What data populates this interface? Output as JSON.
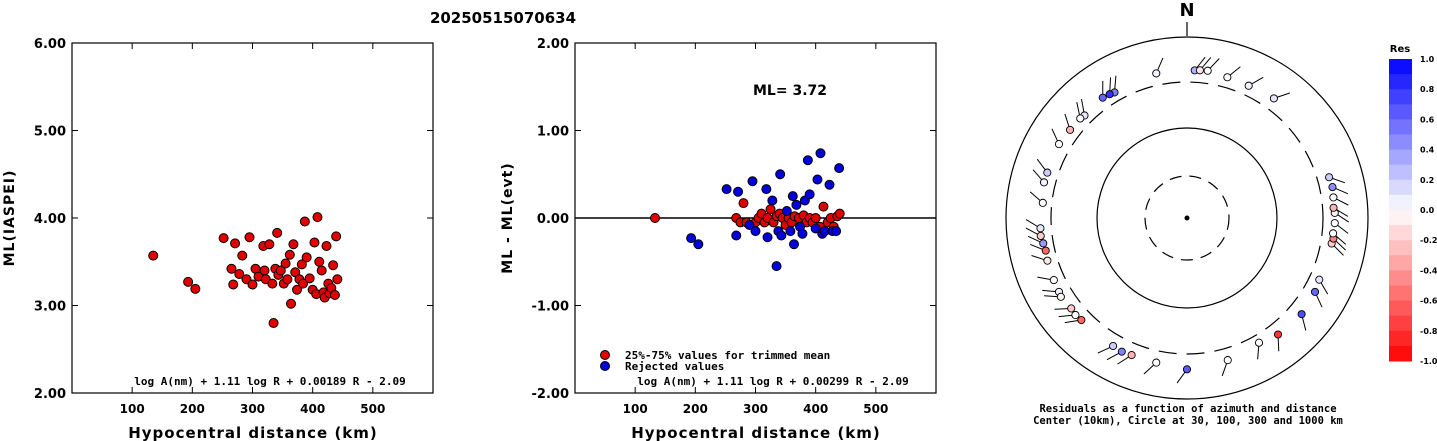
{
  "title": "20250515070634",
  "colors": {
    "point_used": "#e00000",
    "point_rejected": "#0000dd",
    "scale_pos": "#0000ff",
    "scale_neg": "#ff0000"
  },
  "chart_data": [
    {
      "type": "scatter",
      "xlabel": "Hypocentral distance (km)",
      "ylabel": "ML(IASPEI)",
      "xlim": [
        0,
        600
      ],
      "ylim": [
        2.0,
        6.0
      ],
      "xticks": [
        "100",
        "200",
        "300",
        "400",
        "500"
      ],
      "xtick_values": [
        100,
        200,
        300,
        400,
        500
      ],
      "yticks": [
        "2.00",
        "3.00",
        "4.00",
        "5.00",
        "6.00"
      ],
      "ytick_values": [
        2,
        3,
        4,
        5,
        6
      ],
      "formula": "log A(nm) + 1.11 log R + 0.00189 R - 2.09",
      "series": [
        {
          "color": "#e00000",
          "points": [
            [
              135,
              3.57
            ],
            [
              193,
              3.27
            ],
            [
              205,
              3.19
            ],
            [
              252,
              3.77
            ],
            [
              265,
              3.42
            ],
            [
              268,
              3.24
            ],
            [
              271,
              3.71
            ],
            [
              278,
              3.36
            ],
            [
              283,
              3.57
            ],
            [
              290,
              3.3
            ],
            [
              295,
              3.78
            ],
            [
              300,
              3.24
            ],
            [
              305,
              3.42
            ],
            [
              310,
              3.33
            ],
            [
              318,
              3.68
            ],
            [
              320,
              3.4
            ],
            [
              322,
              3.3
            ],
            [
              328,
              3.7
            ],
            [
              333,
              3.25
            ],
            [
              335,
              2.8
            ],
            [
              338,
              3.42
            ],
            [
              341,
              3.83
            ],
            [
              343,
              3.35
            ],
            [
              347,
              3.4
            ],
            [
              352,
              3.25
            ],
            [
              355,
              3.48
            ],
            [
              358,
              3.3
            ],
            [
              362,
              3.58
            ],
            [
              364,
              3.02
            ],
            [
              368,
              3.7
            ],
            [
              371,
              3.38
            ],
            [
              374,
              3.18
            ],
            [
              378,
              3.3
            ],
            [
              382,
              3.47
            ],
            [
              384,
              3.25
            ],
            [
              387,
              3.96
            ],
            [
              390,
              3.55
            ],
            [
              395,
              3.31
            ],
            [
              400,
              3.18
            ],
            [
              403,
              3.72
            ],
            [
              406,
              3.13
            ],
            [
              408,
              4.01
            ],
            [
              411,
              3.5
            ],
            [
              415,
              3.4
            ],
            [
              418,
              3.15
            ],
            [
              420,
              3.09
            ],
            [
              423,
              3.68
            ],
            [
              426,
              3.25
            ],
            [
              428,
              3.14
            ],
            [
              431,
              3.2
            ],
            [
              434,
              3.46
            ],
            [
              437,
              3.12
            ],
            [
              439,
              3.79
            ],
            [
              441,
              3.3
            ]
          ]
        }
      ]
    },
    {
      "type": "scatter",
      "xlabel": "Hypocentral distance (km)",
      "ylabel": "ML - ML(evt)",
      "xlim": [
        0,
        600
      ],
      "ylim": [
        -2.0,
        2.0
      ],
      "xticks": [
        "100",
        "200",
        "300",
        "400",
        "500"
      ],
      "xtick_values": [
        100,
        200,
        300,
        400,
        500
      ],
      "yticks": [
        "-2.00",
        "-1.00",
        "0.00",
        "1.00",
        "2.00"
      ],
      "ytick_values": [
        -2,
        -1,
        0,
        1,
        2
      ],
      "annotation": "ML= 3.72",
      "zero_line": 0,
      "formula": "log A(nm) + 1.11 log R + 0.00299 R - 2.09",
      "legend": [
        {
          "label": "25%-75% values for trimmed mean",
          "color": "#e00000"
        },
        {
          "label": "Rejected values",
          "color": "#0000dd"
        }
      ],
      "series": [
        {
          "name": "25%-75% values for trimmed mean",
          "color": "#e00000",
          "points": [
            [
              133,
              0.0
            ],
            [
              268,
              0.0
            ],
            [
              275,
              -0.05
            ],
            [
              280,
              0.17
            ],
            [
              285,
              -0.05
            ],
            [
              300,
              -0.05
            ],
            [
              305,
              0.0
            ],
            [
              310,
              0.05
            ],
            [
              315,
              -0.05
            ],
            [
              320,
              0.0
            ],
            [
              325,
              0.1
            ],
            [
              330,
              -0.05
            ],
            [
              335,
              0.02
            ],
            [
              340,
              0.05
            ],
            [
              345,
              0.0
            ],
            [
              350,
              -0.08
            ],
            [
              355,
              0.0
            ],
            [
              360,
              -0.05
            ],
            [
              365,
              0.02
            ],
            [
              372,
              0.0
            ],
            [
              380,
              0.03
            ],
            [
              385,
              -0.05
            ],
            [
              390,
              0.0
            ],
            [
              395,
              -0.05
            ],
            [
              400,
              0.0
            ],
            [
              407,
              -0.1
            ],
            [
              413,
              0.13
            ],
            [
              420,
              -0.05
            ],
            [
              425,
              0.0
            ],
            [
              430,
              -0.1
            ],
            [
              436,
              0.02
            ],
            [
              440,
              0.05
            ]
          ]
        },
        {
          "name": "Rejected values",
          "color": "#0000dd",
          "points": [
            [
              193,
              -0.23
            ],
            [
              205,
              -0.3
            ],
            [
              252,
              0.33
            ],
            [
              268,
              -0.2
            ],
            [
              271,
              0.3
            ],
            [
              290,
              -0.08
            ],
            [
              295,
              0.42
            ],
            [
              300,
              -0.15
            ],
            [
              318,
              0.33
            ],
            [
              320,
              -0.22
            ],
            [
              328,
              0.2
            ],
            [
              335,
              -0.55
            ],
            [
              338,
              -0.15
            ],
            [
              341,
              0.5
            ],
            [
              343,
              -0.2
            ],
            [
              352,
              0.08
            ],
            [
              358,
              -0.15
            ],
            [
              362,
              0.25
            ],
            [
              364,
              -0.3
            ],
            [
              368,
              0.15
            ],
            [
              374,
              -0.1
            ],
            [
              378,
              -0.18
            ],
            [
              382,
              0.2
            ],
            [
              387,
              0.66
            ],
            [
              390,
              0.27
            ],
            [
              400,
              -0.12
            ],
            [
              403,
              0.44
            ],
            [
              408,
              0.74
            ],
            [
              411,
              -0.18
            ],
            [
              415,
              -0.15
            ],
            [
              423,
              0.38
            ],
            [
              428,
              -0.15
            ],
            [
              434,
              -0.15
            ],
            [
              439,
              0.57
            ]
          ]
        }
      ]
    },
    {
      "type": "scatter",
      "polar": true,
      "north_label": "N",
      "caption1": "Residuals as a function of azimuth and distance",
      "caption2": "Center (10km), Circle at 30, 100, 300 and 1000 km",
      "rings_km": [
        30,
        100,
        300,
        1000
      ],
      "colorbar": {
        "title": "Res",
        "labels": [
          "1.0",
          "0.8",
          "0.6",
          "0.4",
          "0.2",
          "0.0",
          "-0.2",
          "-0.4",
          "-0.6",
          "-0.8",
          "-1.0"
        ],
        "range": [
          -1.0,
          1.0
        ]
      },
      "points_azimuth_distance_residual": [
        [
          -12,
          430,
          0.05
        ],
        [
          3,
          430,
          0.3
        ],
        [
          5,
          435,
          -0.1
        ],
        [
          8,
          440,
          0.0
        ],
        [
          16,
          415,
          0.0
        ],
        [
          25,
          410,
          0.05
        ],
        [
          36,
          430,
          0.1
        ],
        [
          -30,
          400,
          0.5
        ],
        [
          -32,
          410,
          0.8
        ],
        [
          -35,
          420,
          0.6
        ],
        [
          -45,
          400,
          0.1
        ],
        [
          -47,
          410,
          0.0
        ],
        [
          -53,
          415,
          -0.3
        ],
        [
          -60,
          430,
          0.0
        ],
        [
          -72,
          420,
          0.2
        ],
        [
          -76,
          425,
          0.05
        ],
        [
          -84,
          400,
          0.0
        ],
        [
          -94,
          420,
          0.1
        ],
        [
          -97,
          425,
          -0.2
        ],
        [
          -100,
          410,
          0.4
        ],
        [
          -103,
          400,
          -0.6
        ],
        [
          -107,
          410,
          -0.1
        ],
        [
          -115,
          420,
          0.0
        ],
        [
          -120,
          430,
          0.05
        ],
        [
          -122,
          440,
          -0.05
        ],
        [
          -128,
          420,
          -0.2
        ],
        [
          -131,
          430,
          0.0
        ],
        [
          -134,
          420,
          -0.6
        ],
        [
          -150,
          430,
          0.2
        ],
        [
          -154,
          440,
          0.5
        ],
        [
          -158,
          430,
          -0.3
        ],
        [
          -168,
          430,
          0.0
        ],
        [
          -180,
          470,
          0.65
        ],
        [
          -196,
          430,
          0.0
        ],
        [
          -210,
          390,
          0.0
        ],
        [
          -218,
          430,
          -0.8
        ],
        [
          -230,
          450,
          0.7
        ],
        [
          -240,
          430,
          0.6
        ],
        [
          -245,
          410,
          0.1
        ],
        [
          -260,
          420,
          -0.2
        ],
        [
          -262,
          430,
          -0.5
        ],
        [
          -264,
          420,
          0.0
        ],
        [
          -268,
          430,
          0.0
        ],
        [
          -272,
          430,
          -0.05
        ],
        [
          -274,
          420,
          -0.3
        ],
        [
          -278,
          430,
          0.0
        ],
        [
          -282,
          440,
          0.45
        ],
        [
          -286,
          430,
          0.2
        ]
      ]
    }
  ]
}
